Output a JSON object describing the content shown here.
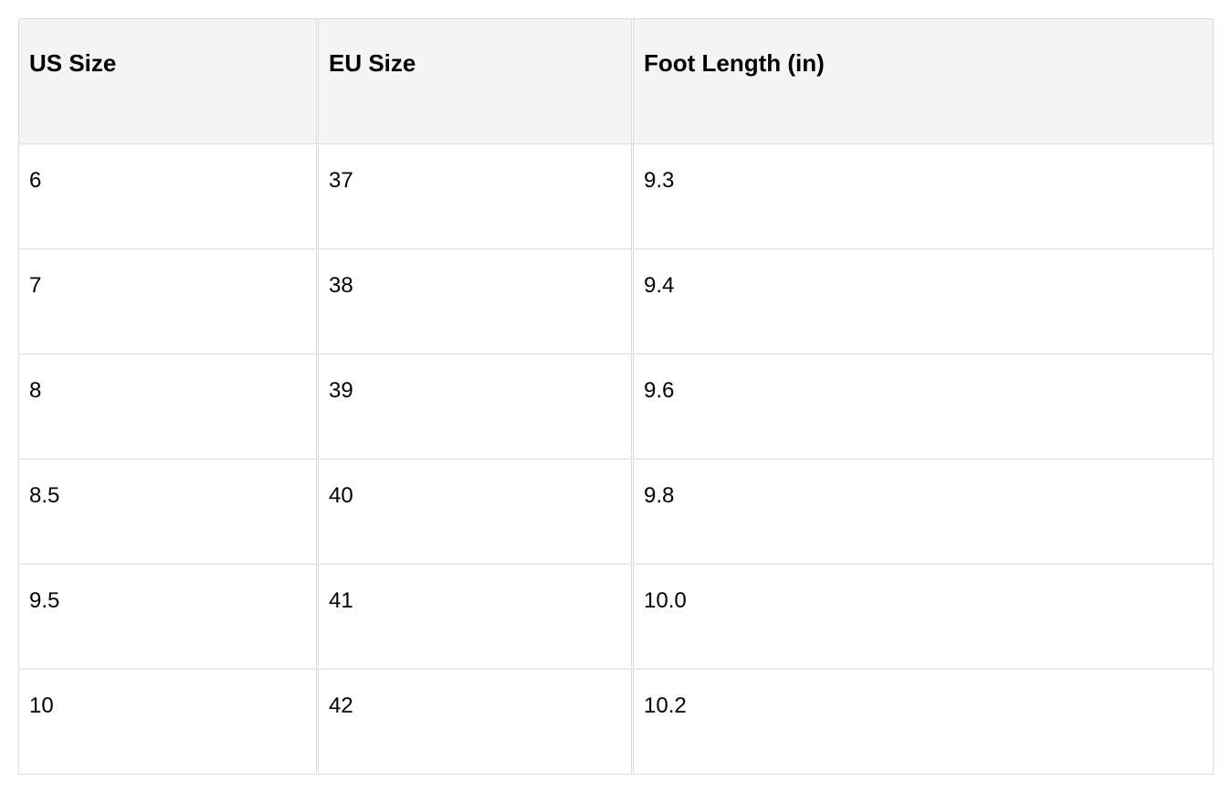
{
  "table": {
    "headers": [
      "US Size",
      "EU Size",
      "Foot Length (in)"
    ],
    "rows": [
      [
        "6",
        "37",
        "9.3"
      ],
      [
        "7",
        "38",
        "9.4"
      ],
      [
        "8",
        "39",
        "9.6"
      ],
      [
        "8.5",
        "40",
        "9.8"
      ],
      [
        "9.5",
        "41",
        "10.0"
      ],
      [
        "10",
        "42",
        "10.2"
      ]
    ]
  }
}
